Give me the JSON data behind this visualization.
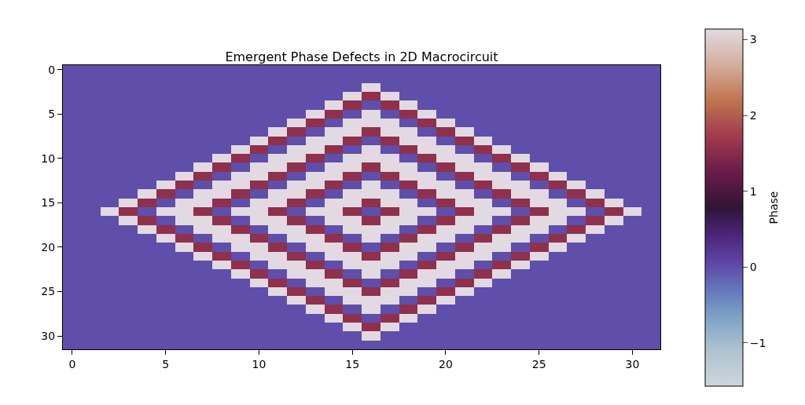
{
  "chart_data": {
    "type": "heatmap",
    "title": "Emergent Phase Defects in 2D Macrocircuit",
    "clabel": "Phase",
    "xlim": [
      -0.5,
      31.5
    ],
    "ylim": [
      31.5,
      -0.5
    ],
    "xticks": [
      0,
      5,
      10,
      15,
      20,
      25,
      30
    ],
    "yticks": [
      0,
      5,
      10,
      15,
      20,
      25,
      30
    ],
    "clim": [
      -1.57,
      3.14
    ],
    "cticks": [
      -1,
      0,
      1,
      2,
      3
    ],
    "cells": [
      [
        0,
        0,
        0,
        0,
        0,
        0,
        0,
        0,
        0,
        0,
        0,
        0,
        0,
        0,
        0,
        0,
        0,
        0,
        0,
        0,
        0,
        0,
        0,
        0,
        0,
        0,
        0,
        0,
        0,
        0,
        0,
        0
      ],
      [
        0,
        0,
        0,
        0,
        0,
        0,
        0,
        0,
        0,
        0,
        0,
        0,
        0,
        0,
        0,
        0,
        0,
        0,
        0,
        0,
        0,
        0,
        0,
        0,
        0,
        0,
        0,
        0,
        0,
        0,
        0,
        0
      ],
      [
        0,
        0,
        0,
        0,
        0,
        0,
        0,
        0,
        0,
        0,
        0,
        0,
        0,
        0,
        0,
        0,
        3.14,
        0,
        0,
        0,
        0,
        0,
        0,
        0,
        0,
        0,
        0,
        0,
        0,
        0,
        0,
        0
      ],
      [
        0,
        0,
        0,
        0,
        0,
        0,
        0,
        0,
        0,
        0,
        0,
        0,
        0,
        0,
        0,
        3.14,
        1.57,
        3.14,
        0,
        0,
        0,
        0,
        0,
        0,
        0,
        0,
        0,
        0,
        0,
        0,
        0,
        0
      ],
      [
        0,
        0,
        0,
        0,
        0,
        0,
        0,
        0,
        0,
        0,
        0,
        0,
        0,
        0,
        3.14,
        1.57,
        0,
        1.57,
        3.14,
        0,
        0,
        0,
        0,
        0,
        0,
        0,
        0,
        0,
        0,
        0,
        0,
        0
      ],
      [
        0,
        0,
        0,
        0,
        0,
        0,
        0,
        0,
        0,
        0,
        0,
        0,
        0,
        3.14,
        1.57,
        0,
        3.14,
        0,
        1.57,
        3.14,
        0,
        0,
        0,
        0,
        0,
        0,
        0,
        0,
        0,
        0,
        0,
        0
      ],
      [
        0,
        0,
        0,
        0,
        0,
        0,
        0,
        0,
        0,
        0,
        0,
        0,
        3.14,
        1.57,
        0,
        3.14,
        3.14,
        3.14,
        0,
        1.57,
        3.14,
        0,
        0,
        0,
        0,
        0,
        0,
        0,
        0,
        0,
        0,
        0
      ],
      [
        0,
        0,
        0,
        0,
        0,
        0,
        0,
        0,
        0,
        0,
        0,
        3.14,
        1.57,
        0,
        3.14,
        3.14,
        1.57,
        3.14,
        3.14,
        0,
        1.57,
        3.14,
        0,
        0,
        0,
        0,
        0,
        0,
        0,
        0,
        0,
        0
      ],
      [
        0,
        0,
        0,
        0,
        0,
        0,
        0,
        0,
        0,
        0,
        3.14,
        1.57,
        0,
        3.14,
        3.14,
        1.57,
        0,
        1.57,
        3.14,
        3.14,
        0,
        1.57,
        3.14,
        0,
        0,
        0,
        0,
        0,
        0,
        0,
        0,
        0
      ],
      [
        0,
        0,
        0,
        0,
        0,
        0,
        0,
        0,
        0,
        3.14,
        1.57,
        0,
        3.14,
        3.14,
        1.57,
        0,
        3.14,
        0,
        1.57,
        3.14,
        3.14,
        0,
        1.57,
        3.14,
        0,
        0,
        0,
        0,
        0,
        0,
        0,
        0
      ],
      [
        0,
        0,
        0,
        0,
        0,
        0,
        0,
        0,
        3.14,
        1.57,
        0,
        3.14,
        3.14,
        1.57,
        0,
        3.14,
        3.14,
        3.14,
        0,
        1.57,
        3.14,
        3.14,
        0,
        1.57,
        3.14,
        0,
        0,
        0,
        0,
        0,
        0,
        0
      ],
      [
        0,
        0,
        0,
        0,
        0,
        0,
        0,
        3.14,
        1.57,
        0,
        3.14,
        3.14,
        1.57,
        0,
        3.14,
        3.14,
        1.57,
        3.14,
        3.14,
        0,
        1.57,
        3.14,
        3.14,
        0,
        1.57,
        3.14,
        0,
        0,
        0,
        0,
        0,
        0
      ],
      [
        0,
        0,
        0,
        0,
        0,
        0,
        3.14,
        1.57,
        0,
        3.14,
        3.14,
        1.57,
        0,
        3.14,
        3.14,
        1.57,
        0,
        1.57,
        3.14,
        3.14,
        0,
        1.57,
        3.14,
        3.14,
        0,
        1.57,
        3.14,
        0,
        0,
        0,
        0,
        0
      ],
      [
        0,
        0,
        0,
        0,
        0,
        3.14,
        1.57,
        0,
        3.14,
        3.14,
        1.57,
        0,
        3.14,
        3.14,
        1.57,
        0,
        3.14,
        0,
        1.57,
        3.14,
        3.14,
        0,
        1.57,
        3.14,
        3.14,
        0,
        1.57,
        3.14,
        0,
        0,
        0,
        0
      ],
      [
        0,
        0,
        0,
        0,
        3.14,
        1.57,
        0,
        3.14,
        3.14,
        1.57,
        0,
        3.14,
        3.14,
        1.57,
        0,
        3.14,
        3.14,
        3.14,
        0,
        1.57,
        3.14,
        3.14,
        0,
        1.57,
        3.14,
        3.14,
        0,
        1.57,
        3.14,
        0,
        0,
        0
      ],
      [
        0,
        0,
        0,
        3.14,
        1.57,
        0,
        3.14,
        3.14,
        1.57,
        0,
        3.14,
        3.14,
        1.57,
        0,
        3.14,
        3.14,
        1.57,
        3.14,
        3.14,
        0,
        1.57,
        3.14,
        3.14,
        0,
        1.57,
        3.14,
        3.14,
        0,
        1.57,
        3.14,
        0,
        0
      ],
      [
        0,
        0,
        3.14,
        1.57,
        0,
        3.14,
        3.14,
        1.57,
        0,
        3.14,
        3.14,
        1.57,
        0,
        3.14,
        3.14,
        1.57,
        0,
        1.57,
        3.14,
        3.14,
        0,
        1.57,
        3.14,
        3.14,
        0,
        1.57,
        3.14,
        3.14,
        0,
        1.57,
        3.14,
        0
      ],
      [
        0,
        0,
        0,
        3.14,
        1.57,
        0,
        3.14,
        3.14,
        1.57,
        0,
        3.14,
        3.14,
        1.57,
        0,
        3.14,
        3.14,
        1.57,
        3.14,
        3.14,
        0,
        1.57,
        3.14,
        3.14,
        0,
        1.57,
        3.14,
        3.14,
        0,
        1.57,
        3.14,
        0,
        0
      ],
      [
        0,
        0,
        0,
        0,
        3.14,
        1.57,
        0,
        3.14,
        3.14,
        1.57,
        0,
        3.14,
        3.14,
        1.57,
        0,
        3.14,
        3.14,
        3.14,
        0,
        1.57,
        3.14,
        3.14,
        0,
        1.57,
        3.14,
        3.14,
        0,
        1.57,
        3.14,
        0,
        0,
        0
      ],
      [
        0,
        0,
        0,
        0,
        0,
        3.14,
        1.57,
        0,
        3.14,
        3.14,
        1.57,
        0,
        3.14,
        3.14,
        1.57,
        0,
        3.14,
        0,
        1.57,
        3.14,
        3.14,
        0,
        1.57,
        3.14,
        3.14,
        0,
        1.57,
        3.14,
        0,
        0,
        0,
        0
      ],
      [
        0,
        0,
        0,
        0,
        0,
        0,
        3.14,
        1.57,
        0,
        3.14,
        3.14,
        1.57,
        0,
        3.14,
        3.14,
        1.57,
        0,
        1.57,
        3.14,
        3.14,
        0,
        1.57,
        3.14,
        3.14,
        0,
        1.57,
        3.14,
        0,
        0,
        0,
        0,
        0
      ],
      [
        0,
        0,
        0,
        0,
        0,
        0,
        0,
        3.14,
        1.57,
        0,
        3.14,
        3.14,
        1.57,
        0,
        3.14,
        3.14,
        1.57,
        3.14,
        3.14,
        0,
        1.57,
        3.14,
        3.14,
        0,
        1.57,
        3.14,
        0,
        0,
        0,
        0,
        0,
        0
      ],
      [
        0,
        0,
        0,
        0,
        0,
        0,
        0,
        0,
        3.14,
        1.57,
        0,
        3.14,
        3.14,
        1.57,
        0,
        3.14,
        3.14,
        3.14,
        0,
        1.57,
        3.14,
        3.14,
        0,
        1.57,
        3.14,
        0,
        0,
        0,
        0,
        0,
        0,
        0
      ],
      [
        0,
        0,
        0,
        0,
        0,
        0,
        0,
        0,
        0,
        3.14,
        1.57,
        0,
        3.14,
        3.14,
        1.57,
        0,
        3.14,
        0,
        1.57,
        3.14,
        3.14,
        0,
        1.57,
        3.14,
        0,
        0,
        0,
        0,
        0,
        0,
        0,
        0
      ],
      [
        0,
        0,
        0,
        0,
        0,
        0,
        0,
        0,
        0,
        0,
        3.14,
        1.57,
        0,
        3.14,
        3.14,
        1.57,
        0,
        1.57,
        3.14,
        3.14,
        0,
        1.57,
        3.14,
        0,
        0,
        0,
        0,
        0,
        0,
        0,
        0,
        0
      ],
      [
        0,
        0,
        0,
        0,
        0,
        0,
        0,
        0,
        0,
        0,
        0,
        3.14,
        1.57,
        0,
        3.14,
        3.14,
        1.57,
        3.14,
        3.14,
        0,
        1.57,
        3.14,
        0,
        0,
        0,
        0,
        0,
        0,
        0,
        0,
        0,
        0
      ],
      [
        0,
        0,
        0,
        0,
        0,
        0,
        0,
        0,
        0,
        0,
        0,
        0,
        3.14,
        1.57,
        0,
        3.14,
        3.14,
        3.14,
        0,
        1.57,
        3.14,
        0,
        0,
        0,
        0,
        0,
        0,
        0,
        0,
        0,
        0,
        0
      ],
      [
        0,
        0,
        0,
        0,
        0,
        0,
        0,
        0,
        0,
        0,
        0,
        0,
        0,
        3.14,
        1.57,
        0,
        3.14,
        0,
        1.57,
        3.14,
        0,
        0,
        0,
        0,
        0,
        0,
        0,
        0,
        0,
        0,
        0,
        0
      ],
      [
        0,
        0,
        0,
        0,
        0,
        0,
        0,
        0,
        0,
        0,
        0,
        0,
        0,
        0,
        3.14,
        1.57,
        0,
        1.57,
        3.14,
        0,
        0,
        0,
        0,
        0,
        0,
        0,
        0,
        0,
        0,
        0,
        0,
        0
      ],
      [
        0,
        0,
        0,
        0,
        0,
        0,
        0,
        0,
        0,
        0,
        0,
        0,
        0,
        0,
        0,
        3.14,
        1.57,
        3.14,
        0,
        0,
        0,
        0,
        0,
        0,
        0,
        0,
        0,
        0,
        0,
        0,
        0,
        0
      ],
      [
        0,
        0,
        0,
        0,
        0,
        0,
        0,
        0,
        0,
        0,
        0,
        0,
        0,
        0,
        0,
        0,
        3.14,
        0,
        0,
        0,
        0,
        0,
        0,
        0,
        0,
        0,
        0,
        0,
        0,
        0,
        0,
        0
      ],
      [
        0,
        0,
        0,
        0,
        0,
        0,
        0,
        0,
        0,
        0,
        0,
        0,
        0,
        0,
        0,
        0,
        0,
        0,
        0,
        0,
        0,
        0,
        0,
        0,
        0,
        0,
        0,
        0,
        0,
        0,
        0,
        0
      ]
    ]
  }
}
